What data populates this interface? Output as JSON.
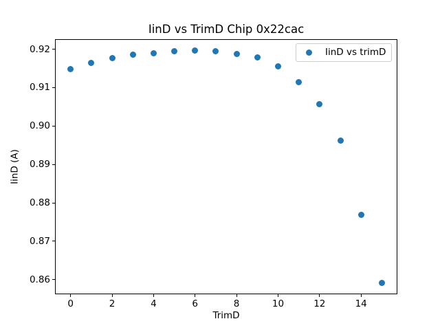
{
  "chart_data": {
    "type": "scatter",
    "title": "IinD vs TrimD Chip 0x22cac",
    "xlabel": "TrimD",
    "ylabel": "IinD (A)",
    "legend": {
      "entries": [
        "IinD vs trimD"
      ],
      "position": "upper right"
    },
    "x": [
      0,
      1,
      2,
      3,
      4,
      5,
      6,
      7,
      8,
      9,
      10,
      11,
      12,
      13,
      14,
      15
    ],
    "y": [
      0.9148,
      0.9165,
      0.9177,
      0.9185,
      0.9189,
      0.9195,
      0.9196,
      0.9194,
      0.9187,
      0.9179,
      0.9155,
      0.9114,
      0.9057,
      0.8962,
      0.8768,
      0.8592
    ],
    "xlim": [
      -0.75,
      15.75
    ],
    "ylim": [
      0.8562,
      0.9226
    ],
    "xticks": [
      0,
      2,
      4,
      6,
      8,
      10,
      12,
      14
    ],
    "yticks": [
      0.86,
      0.87,
      0.88,
      0.89,
      0.9,
      0.91,
      0.92
    ],
    "grid": false,
    "marker_color": "#1f77b4",
    "background_color": "#ffffff",
    "spine_color": "#000000",
    "legend_border_color": "#cccccc"
  }
}
